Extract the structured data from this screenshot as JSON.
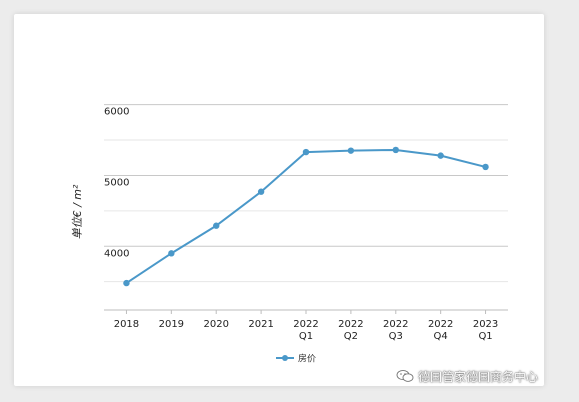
{
  "chart_data": {
    "type": "line",
    "categories": [
      [
        "2018"
      ],
      [
        "2019"
      ],
      [
        "2020"
      ],
      [
        "2021"
      ],
      [
        "2022",
        "Q1"
      ],
      [
        "2022",
        "Q2"
      ],
      [
        "2022",
        "Q3"
      ],
      [
        "2022",
        "Q4"
      ],
      [
        "2023",
        "Q1"
      ]
    ],
    "series": [
      {
        "name": "房价",
        "color": "#4a98c9",
        "values": [
          3480,
          3900,
          4290,
          4770,
          5330,
          5350,
          5360,
          5280,
          5120
        ]
      }
    ],
    "ylabel": "单位€ / m²",
    "yticks": [
      4000,
      5000,
      6000
    ],
    "ylim": [
      3100,
      6150
    ],
    "grid": true,
    "legend_position": "bottom-center"
  },
  "watermark": {
    "text": "德国管家德国商务中心",
    "icon": "wechat-icon"
  }
}
